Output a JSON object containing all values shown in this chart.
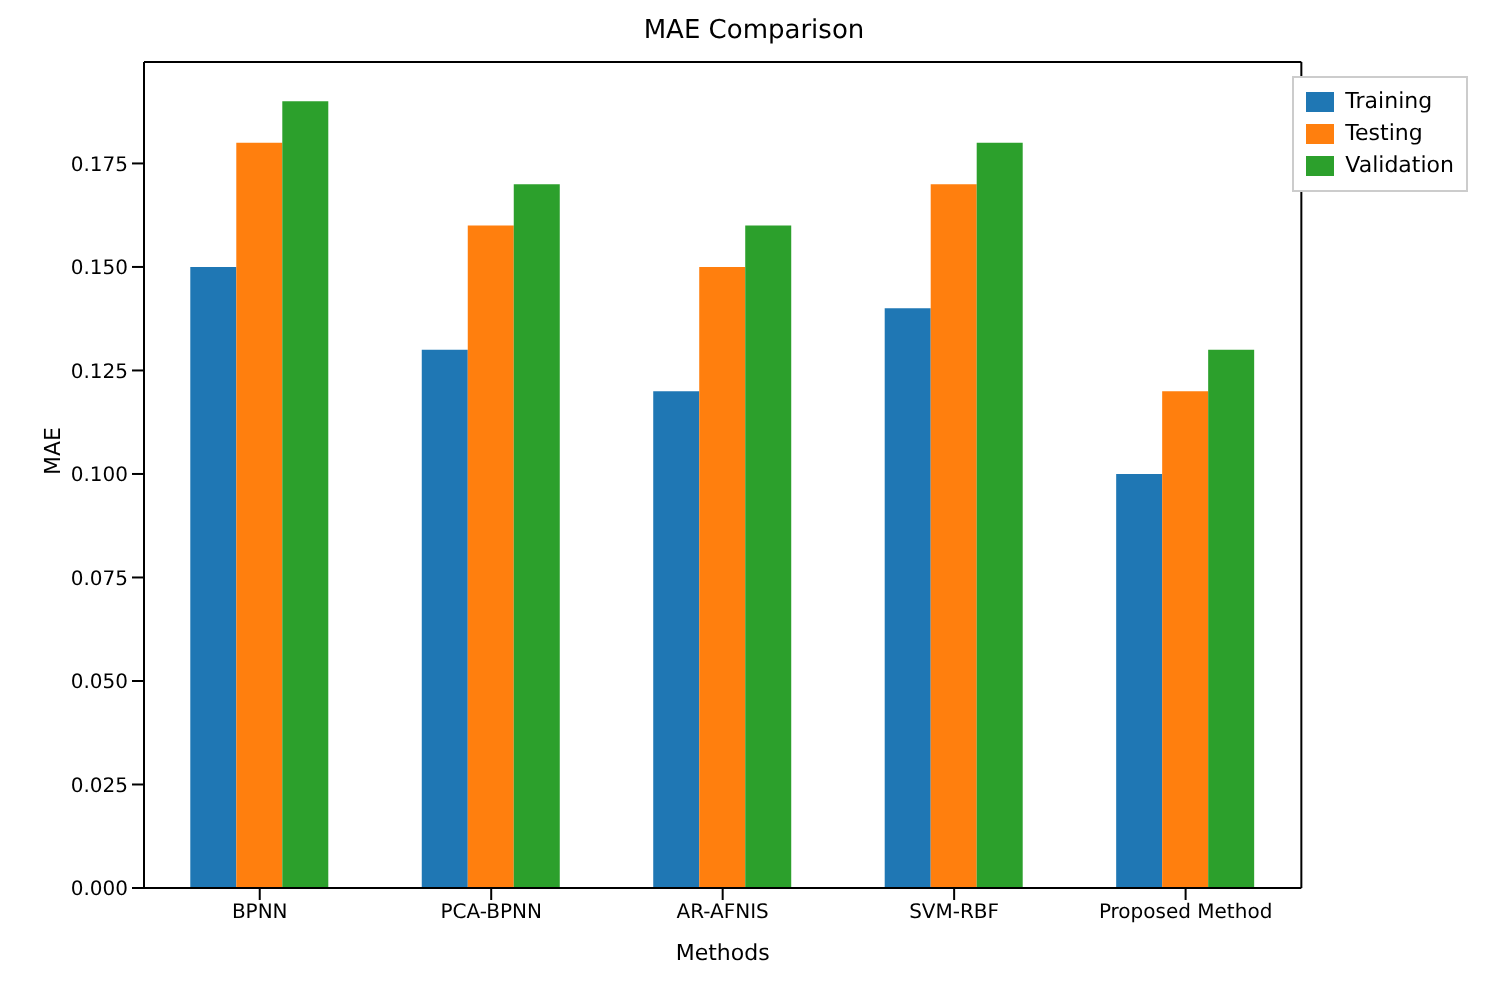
{
  "chart_data": {
    "type": "bar",
    "title": "MAE Comparison",
    "xlabel": "Methods",
    "ylabel": "MAE",
    "categories": [
      "BPNN",
      "PCA-BPNN",
      "AR-AFNIS",
      "SVM-RBF",
      "Proposed Method"
    ],
    "series": [
      {
        "name": "Training",
        "color": "#1f77b4",
        "values": [
          0.15,
          0.13,
          0.12,
          0.14,
          0.1
        ]
      },
      {
        "name": "Testing",
        "color": "#ff7f0e",
        "values": [
          0.18,
          0.16,
          0.15,
          0.17,
          0.12
        ]
      },
      {
        "name": "Validation",
        "color": "#2ca02c",
        "values": [
          0.19,
          0.17,
          0.16,
          0.18,
          0.13
        ]
      }
    ],
    "ylim": [
      0,
      0.1995
    ],
    "yticks": [
      {
        "value": 0,
        "label": "0.000"
      },
      {
        "value": 0.025,
        "label": "0.025"
      },
      {
        "value": 0.05,
        "label": "0.050"
      },
      {
        "value": 0.075,
        "label": "0.075"
      },
      {
        "value": 0.1,
        "label": "0.100"
      },
      {
        "value": 0.125,
        "label": "0.125"
      },
      {
        "value": 0.15,
        "label": "0.150"
      },
      {
        "value": 0.175,
        "label": "0.175"
      }
    ],
    "grid": false,
    "legend": "top right"
  }
}
